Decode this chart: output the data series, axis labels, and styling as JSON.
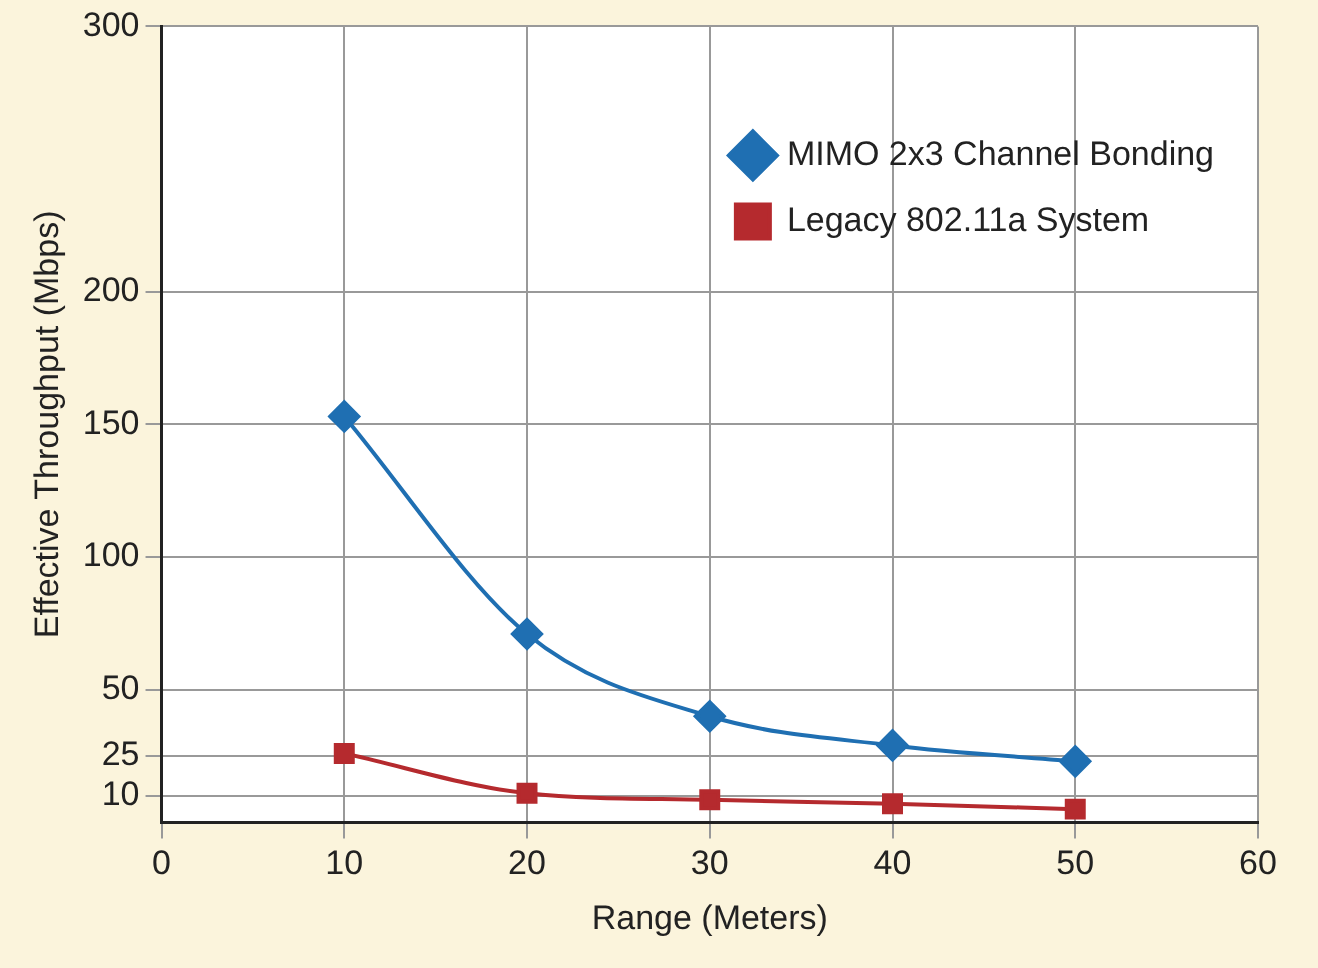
{
  "chart_data": {
    "type": "line",
    "xlabel": "Range (Meters)",
    "ylabel": "Effective Throughput (Mbps)",
    "x": [
      10,
      20,
      30,
      40,
      50
    ],
    "series": [
      {
        "name": "MIMO 2x3 Channel Bonding",
        "color": "#1f6fb2",
        "marker": "diamond",
        "values": [
          153,
          71,
          40,
          29,
          23
        ]
      },
      {
        "name": "Legacy 802.11a System",
        "color": "#b52a2e",
        "marker": "square",
        "values": [
          26,
          11,
          8.5,
          7,
          5
        ]
      }
    ],
    "xlim": [
      0,
      60
    ],
    "xticks": [
      0,
      10,
      20,
      30,
      40,
      50,
      60
    ],
    "ylim": [
      0,
      300
    ],
    "yticks": [
      10,
      25,
      50,
      100,
      150,
      200,
      300
    ],
    "grid": true,
    "legend": "top right",
    "line_style": "solid"
  }
}
